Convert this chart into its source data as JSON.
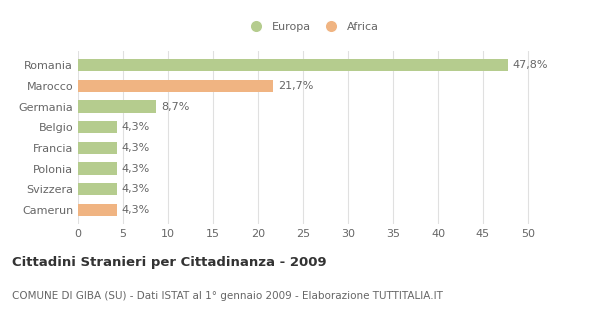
{
  "categories": [
    "Romania",
    "Marocco",
    "Germania",
    "Belgio",
    "Francia",
    "Polonia",
    "Svizzera",
    "Camerun"
  ],
  "values": [
    47.8,
    21.7,
    8.7,
    4.3,
    4.3,
    4.3,
    4.3,
    4.3
  ],
  "labels": [
    "47,8%",
    "21,7%",
    "8,7%",
    "4,3%",
    "4,3%",
    "4,3%",
    "4,3%",
    "4,3%"
  ],
  "colors": [
    "#b5cc8e",
    "#f0b482",
    "#b5cc8e",
    "#b5cc8e",
    "#b5cc8e",
    "#b5cc8e",
    "#b5cc8e",
    "#f0b482"
  ],
  "europa_color": "#b5cc8e",
  "africa_color": "#f0b482",
  "xlim": [
    0,
    52
  ],
  "xticks": [
    0,
    5,
    10,
    15,
    20,
    25,
    30,
    35,
    40,
    45,
    50
  ],
  "title_bold": "Cittadini Stranieri per Cittadinanza - 2009",
  "subtitle": "COMUNE DI GIBA (SU) - Dati ISTAT al 1° gennaio 2009 - Elaborazione TUTTITALIA.IT",
  "bg_color": "#ffffff",
  "grid_color": "#e0e0e0",
  "bar_height": 0.6,
  "label_fontsize": 8,
  "tick_fontsize": 8,
  "title_fontsize": 9.5,
  "subtitle_fontsize": 7.5,
  "text_color": "#666666"
}
